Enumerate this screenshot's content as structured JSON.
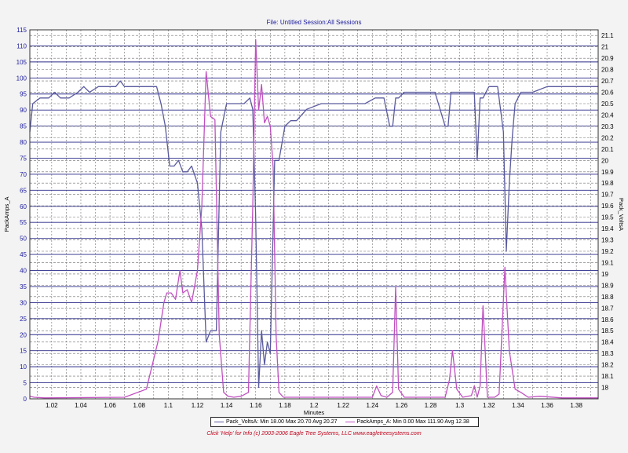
{
  "header": {
    "title": "File: Untitled   Session:All Sessions"
  },
  "footer": {
    "text": "Click 'Help' for Info  (c) 2003-2006 Eagle Tree Systems, LLC    www.eagletreesystems.com"
  },
  "legend": {
    "volts": "Pack_VoltsA:  Min 18.00 Max 20.70 Avg 20.27",
    "amps": "PackAmps_A:  Min 0.00 Max 111.90 Avg 12.38"
  },
  "colors": {
    "volts": "#5a5a9e",
    "amps": "#c050c0",
    "grid_major": "#2a2a8a",
    "grid_minor": "#6e6e6e",
    "tick_text": "#1c1c9e"
  },
  "chart_data": {
    "type": "line",
    "xlabel": "Minutes",
    "ylabel_left": "PackAmps_A",
    "ylabel_right": "Pack_VoltsA",
    "xlim": [
      1.005,
      1.395
    ],
    "ylim_left": [
      0,
      115
    ],
    "ylim_right": [
      17.9,
      21.15
    ],
    "x_ticks": [
      "1.02",
      "1.04",
      "1.06",
      "1.08",
      "1.1",
      "1.12",
      "1.14",
      "1.16",
      "1.18",
      "1.2",
      "1.22",
      "1.24",
      "1.26",
      "1.28",
      "1.3",
      "1.32",
      "1.34",
      "1.36",
      "1.38"
    ],
    "y_left_ticks": [
      "0",
      "5",
      "10",
      "15",
      "20",
      "25",
      "30",
      "35",
      "40",
      "45",
      "50",
      "55",
      "60",
      "65",
      "70",
      "75",
      "80",
      "85",
      "90",
      "95",
      "100",
      "105",
      "110",
      "115"
    ],
    "y_right_ticks": [
      "18",
      "18.1",
      "18.2",
      "18.3",
      "18.4",
      "18.5",
      "18.6",
      "18.7",
      "18.8",
      "18.9",
      "19",
      "19.1",
      "19.2",
      "19.3",
      "19.4",
      "19.5",
      "19.6",
      "19.7",
      "19.8",
      "19.9",
      "20",
      "20.1",
      "20.2",
      "20.3",
      "20.4",
      "20.5",
      "20.6",
      "20.7",
      "20.8",
      "20.9",
      "21",
      "21.1"
    ],
    "grid": true,
    "legend_position": "bottom-center",
    "series": [
      {
        "name": "Pack_VoltsA",
        "axis": "right",
        "x": [
          1.005,
          1.007,
          1.012,
          1.018,
          1.022,
          1.026,
          1.032,
          1.038,
          1.042,
          1.046,
          1.052,
          1.058,
          1.064,
          1.067,
          1.07,
          1.078,
          1.085,
          1.092,
          1.095,
          1.098,
          1.101,
          1.104,
          1.107,
          1.11,
          1.113,
          1.116,
          1.12,
          1.123,
          1.126,
          1.129,
          1.133,
          1.136,
          1.14,
          1.145,
          1.152,
          1.156,
          1.158,
          1.16,
          1.162,
          1.164,
          1.166,
          1.168,
          1.17,
          1.173,
          1.176,
          1.18,
          1.184,
          1.188,
          1.195,
          1.205,
          1.215,
          1.225,
          1.235,
          1.242,
          1.248,
          1.252,
          1.254,
          1.256,
          1.258,
          1.262,
          1.268,
          1.275,
          1.283,
          1.29,
          1.292,
          1.294,
          1.296,
          1.298,
          1.305,
          1.31,
          1.312,
          1.314,
          1.316,
          1.32,
          1.326,
          1.33,
          1.332,
          1.334,
          1.336,
          1.338,
          1.342,
          1.35,
          1.36,
          1.37,
          1.395
        ],
        "y": [
          20.25,
          20.5,
          20.55,
          20.55,
          20.6,
          20.55,
          20.55,
          20.6,
          20.65,
          20.6,
          20.65,
          20.65,
          20.65,
          20.7,
          20.65,
          20.65,
          20.65,
          20.65,
          20.5,
          20.3,
          19.95,
          19.95,
          20.0,
          19.9,
          19.9,
          19.95,
          19.8,
          19.4,
          18.4,
          18.5,
          18.5,
          20.25,
          20.5,
          20.5,
          20.5,
          20.55,
          20.45,
          19.5,
          18.0,
          18.5,
          18.2,
          18.4,
          18.3,
          20.0,
          20.0,
          20.3,
          20.35,
          20.35,
          20.45,
          20.5,
          20.5,
          20.5,
          20.5,
          20.55,
          20.55,
          20.3,
          20.3,
          20.55,
          20.55,
          20.6,
          20.6,
          20.6,
          20.6,
          20.3,
          20.3,
          20.6,
          20.6,
          20.6,
          20.6,
          20.6,
          20.0,
          20.55,
          20.55,
          20.65,
          20.65,
          20.25,
          19.2,
          19.8,
          20.2,
          20.5,
          20.6,
          20.6,
          20.65,
          20.65,
          20.65
        ]
      },
      {
        "name": "PackAmps_A",
        "axis": "left",
        "x": [
          1.005,
          1.008,
          1.015,
          1.07,
          1.085,
          1.093,
          1.097,
          1.099,
          1.102,
          1.105,
          1.108,
          1.11,
          1.113,
          1.116,
          1.12,
          1.123,
          1.126,
          1.129,
          1.132,
          1.135,
          1.138,
          1.141,
          1.145,
          1.15,
          1.155,
          1.158,
          1.16,
          1.162,
          1.164,
          1.166,
          1.168,
          1.17,
          1.172,
          1.174,
          1.176,
          1.179,
          1.185,
          1.24,
          1.243,
          1.246,
          1.25,
          1.254,
          1.256,
          1.258,
          1.262,
          1.29,
          1.293,
          1.295,
          1.298,
          1.302,
          1.308,
          1.31,
          1.312,
          1.314,
          1.316,
          1.319,
          1.324,
          1.327,
          1.331,
          1.334,
          1.338,
          1.342,
          1.347,
          1.355,
          1.37,
          1.395
        ],
        "y": [
          0.8,
          0.5,
          0.3,
          0.5,
          3,
          18,
          30,
          33,
          33,
          31,
          40,
          33,
          34,
          30,
          40,
          60,
          102,
          88,
          87,
          20,
          2,
          0.8,
          0.5,
          0.8,
          2,
          60,
          112,
          90,
          98,
          86,
          88,
          85,
          72,
          20,
          2,
          0.5,
          0.5,
          0.5,
          4,
          1,
          0.5,
          2,
          35,
          3,
          0.5,
          0.5,
          6,
          15,
          3,
          0.5,
          1,
          4,
          0.5,
          4,
          29,
          0.5,
          0.5,
          1.5,
          41,
          15,
          3,
          2,
          0.5,
          0.8,
          0.3,
          0.3
        ]
      }
    ]
  }
}
